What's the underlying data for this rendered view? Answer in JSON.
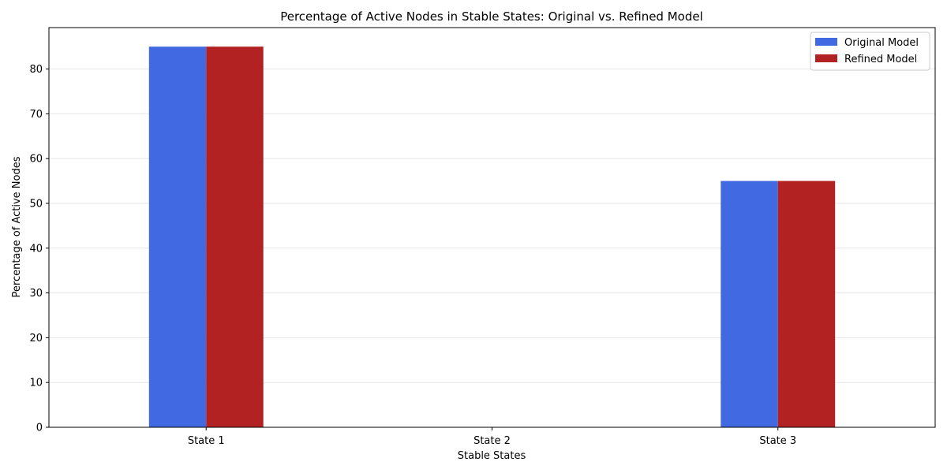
{
  "chart_data": {
    "type": "bar",
    "title": "Percentage of Active Nodes in Stable States: Original vs. Refined Model",
    "xlabel": "Stable States",
    "ylabel": "Percentage of Active Nodes",
    "categories": [
      "State 1",
      "State 2",
      "State 3"
    ],
    "series": [
      {
        "name": "Original Model",
        "values": [
          85,
          0,
          55
        ],
        "color": "#4169e1"
      },
      {
        "name": "Refined Model",
        "values": [
          85,
          0,
          55
        ],
        "color": "#b22222"
      }
    ],
    "ylim": [
      0,
      89.25
    ],
    "yticks": [
      0,
      10,
      20,
      30,
      40,
      50,
      60,
      70,
      80
    ],
    "grid": "y-major-light",
    "legend_position": "top-right"
  }
}
